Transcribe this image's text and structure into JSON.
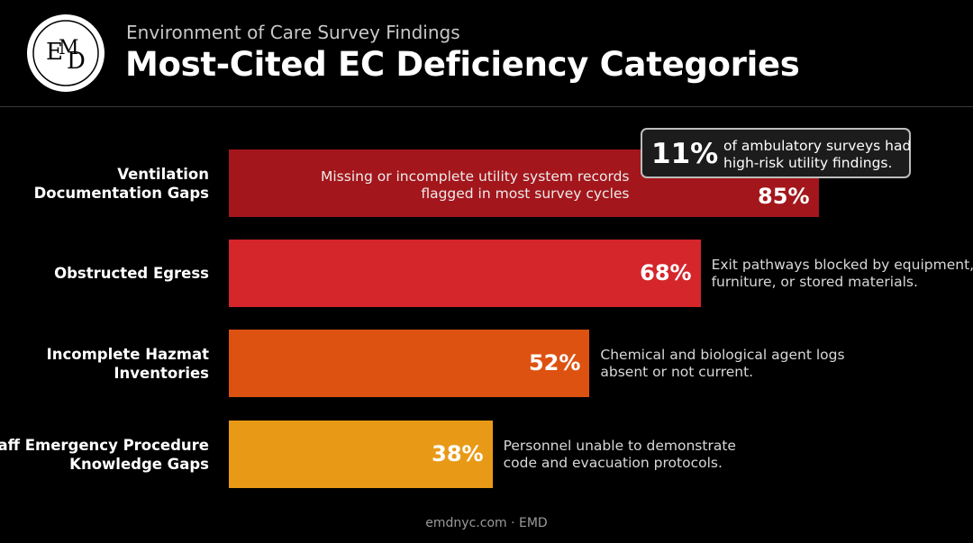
{
  "header": {
    "logo_text": "EMD",
    "subtitle": "Environment of Care Survey Findings",
    "title": "Most-Cited EC Deficiency Categories"
  },
  "callout": {
    "value": "11%",
    "text_line1": "of ambulatory surveys had",
    "text_line2": "high-risk utility findings.",
    "border_color": "#bdbdbd"
  },
  "footer": {
    "text": "emdnyc.com · EMD"
  },
  "chart_data": {
    "type": "bar",
    "orientation": "horizontal",
    "xlim": [
      0,
      100
    ],
    "categories": [
      [
        "Ventilation",
        "Documentation Gaps"
      ],
      [
        "Obstructed Egress"
      ],
      [
        "Incomplete Hazmat",
        "Inventories"
      ],
      [
        "Staff Emergency Procedure",
        "Knowledge Gaps"
      ]
    ],
    "values": [
      85,
      68,
      52,
      38
    ],
    "value_labels": [
      "85%",
      "68%",
      "52%",
      "38%"
    ],
    "colors": [
      "#a3161b",
      "#d4262b",
      "#dd5211",
      "#e89a17"
    ],
    "annotations": [
      [
        "Missing or incomplete utility system records",
        "flagged in most survey cycles"
      ],
      [
        "Exit pathways blocked by equipment,",
        "furniture, or stored materials."
      ],
      [
        "Chemical and biological agent logs",
        "absent or not current."
      ],
      [
        "Personnel unable to demonstrate",
        "code and evacuation protocols."
      ]
    ],
    "annotation_inside": [
      true,
      false,
      false,
      false
    ],
    "grid": false,
    "legend": "none"
  }
}
